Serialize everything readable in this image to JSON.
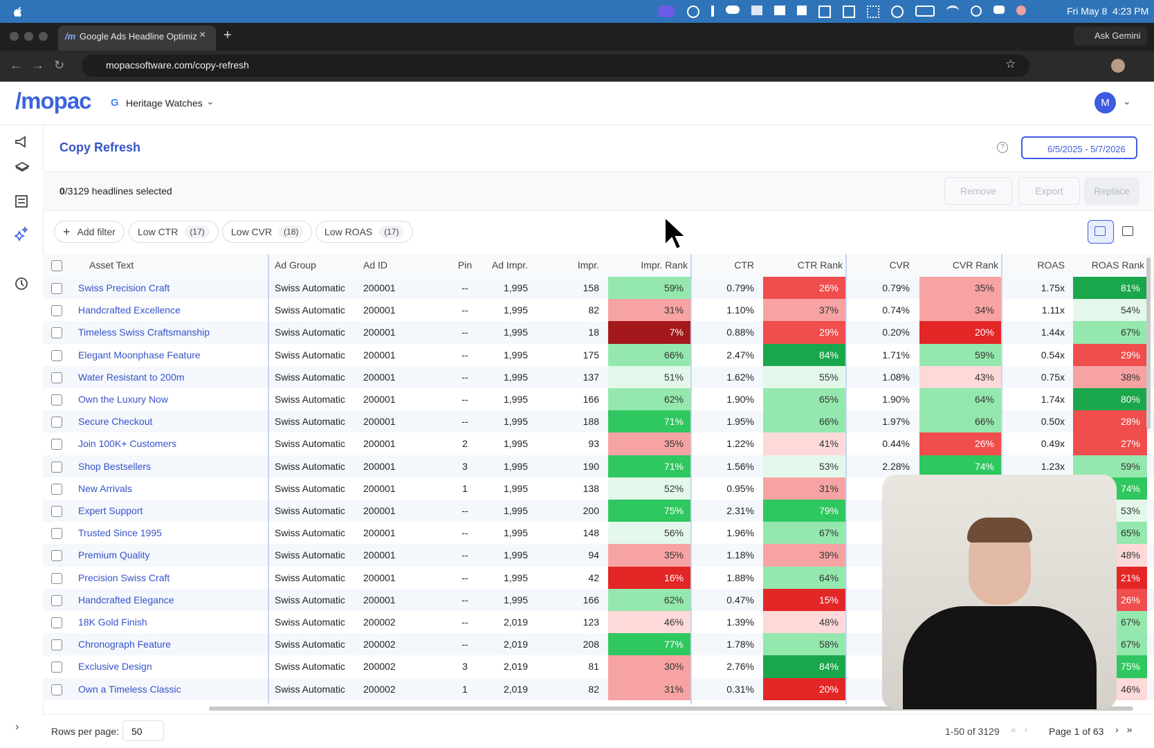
{
  "menubar": {
    "datetime": "Fri May 8  4:23 PM"
  },
  "browser": {
    "tab_title": "Google Ads Headline Optimiz",
    "ask": "Ask Gemini",
    "url": "mopacsoftware.com/copy-refresh"
  },
  "header": {
    "logo": "/mopac",
    "account": "Heritage Watches",
    "avatar": "M"
  },
  "page": {
    "title": "Copy Refresh",
    "date_range": "6/5/2025 - 5/7/2026",
    "selected_count": "0",
    "selected_text": "/3129 headlines selected",
    "buttons": [
      "Remove",
      "Export",
      "Replace"
    ]
  },
  "filters": [
    {
      "label": "Add filter"
    },
    {
      "label": "Low CTR",
      "count": "(17)"
    },
    {
      "label": "Low CVR",
      "count": "(18)"
    },
    {
      "label": "Low ROAS",
      "count": "(17)"
    }
  ],
  "table": {
    "headers": {
      "asset": "Asset Text",
      "group": "Ad Group",
      "id": "Ad ID",
      "pin": "Pin",
      "adimpr": "Ad Impr.",
      "impr": "Impr.",
      "imprRank": "Impr. Rank",
      "ctr": "CTR",
      "ctrRank": "CTR Rank",
      "cvr": "CVR",
      "cvrRank": "CVR Rank",
      "roas": "ROAS",
      "roasRank": "ROAS Rank"
    },
    "rows": [
      {
        "asset": "Swiss Precision Craft",
        "group": "Swiss Automatic",
        "id": "200001",
        "pin": "--",
        "adimpr": "1,995",
        "impr": "158",
        "imprRank": "59%",
        "ctr": "0.79%",
        "ctrRank": "26%",
        "cvr": "0.79%",
        "cvrRank": "35%",
        "roas": "1.75x",
        "roasRank": "81%"
      },
      {
        "asset": "Handcrafted Excellence",
        "group": "Swiss Automatic",
        "id": "200001",
        "pin": "--",
        "adimpr": "1,995",
        "impr": "82",
        "imprRank": "31%",
        "ctr": "1.10%",
        "ctrRank": "37%",
        "cvr": "0.74%",
        "cvrRank": "34%",
        "roas": "1.11x",
        "roasRank": "54%"
      },
      {
        "asset": "Timeless Swiss Craftsmanship",
        "group": "Swiss Automatic",
        "id": "200001",
        "pin": "--",
        "adimpr": "1,995",
        "impr": "18",
        "imprRank": "7%",
        "ctr": "0.88%",
        "ctrRank": "29%",
        "cvr": "0.20%",
        "cvrRank": "20%",
        "roas": "1.44x",
        "roasRank": "67%"
      },
      {
        "asset": "Elegant Moonphase Feature",
        "group": "Swiss Automatic",
        "id": "200001",
        "pin": "--",
        "adimpr": "1,995",
        "impr": "175",
        "imprRank": "66%",
        "ctr": "2.47%",
        "ctrRank": "84%",
        "cvr": "1.71%",
        "cvrRank": "59%",
        "roas": "0.54x",
        "roasRank": "29%"
      },
      {
        "asset": "Water Resistant to 200m",
        "group": "Swiss Automatic",
        "id": "200001",
        "pin": "--",
        "adimpr": "1,995",
        "impr": "137",
        "imprRank": "51%",
        "ctr": "1.62%",
        "ctrRank": "55%",
        "cvr": "1.08%",
        "cvrRank": "43%",
        "roas": "0.75x",
        "roasRank": "38%"
      },
      {
        "asset": "Own the Luxury Now",
        "group": "Swiss Automatic",
        "id": "200001",
        "pin": "--",
        "adimpr": "1,995",
        "impr": "166",
        "imprRank": "62%",
        "ctr": "1.90%",
        "ctrRank": "65%",
        "cvr": "1.90%",
        "cvrRank": "64%",
        "roas": "1.74x",
        "roasRank": "80%"
      },
      {
        "asset": "Secure Checkout",
        "group": "Swiss Automatic",
        "id": "200001",
        "pin": "--",
        "adimpr": "1,995",
        "impr": "188",
        "imprRank": "71%",
        "ctr": "1.95%",
        "ctrRank": "66%",
        "cvr": "1.97%",
        "cvrRank": "66%",
        "roas": "0.50x",
        "roasRank": "28%"
      },
      {
        "asset": "Join 100K+ Customers",
        "group": "Swiss Automatic",
        "id": "200001",
        "pin": "2",
        "adimpr": "1,995",
        "impr": "93",
        "imprRank": "35%",
        "ctr": "1.22%",
        "ctrRank": "41%",
        "cvr": "0.44%",
        "cvrRank": "26%",
        "roas": "0.49x",
        "roasRank": "27%"
      },
      {
        "asset": "Shop Bestsellers",
        "group": "Swiss Automatic",
        "id": "200001",
        "pin": "3",
        "adimpr": "1,995",
        "impr": "190",
        "imprRank": "71%",
        "ctr": "1.56%",
        "ctrRank": "53%",
        "cvr": "2.28%",
        "cvrRank": "74%",
        "roas": "1.23x",
        "roasRank": "59%"
      },
      {
        "asset": "New Arrivals",
        "group": "Swiss Automatic",
        "id": "200001",
        "pin": "1",
        "adimpr": "1,995",
        "impr": "138",
        "imprRank": "52%",
        "ctr": "0.95%",
        "ctrRank": "31%",
        "roasRank": "74%"
      },
      {
        "asset": "Expert Support",
        "group": "Swiss Automatic",
        "id": "200001",
        "pin": "--",
        "adimpr": "1,995",
        "impr": "200",
        "imprRank": "75%",
        "ctr": "2.31%",
        "ctrRank": "79%",
        "roasRank": "53%"
      },
      {
        "asset": "Trusted Since 1995",
        "group": "Swiss Automatic",
        "id": "200001",
        "pin": "--",
        "adimpr": "1,995",
        "impr": "148",
        "imprRank": "56%",
        "ctr": "1.96%",
        "ctrRank": "67%",
        "roasRank": "65%"
      },
      {
        "asset": "Premium Quality",
        "group": "Swiss Automatic",
        "id": "200001",
        "pin": "--",
        "adimpr": "1,995",
        "impr": "94",
        "imprRank": "35%",
        "ctr": "1.18%",
        "ctrRank": "39%",
        "roasRank": "48%"
      },
      {
        "asset": "Precision Swiss Craft",
        "group": "Swiss Automatic",
        "id": "200001",
        "pin": "--",
        "adimpr": "1,995",
        "impr": "42",
        "imprRank": "16%",
        "ctr": "1.88%",
        "ctrRank": "64%",
        "roasRank": "21%"
      },
      {
        "asset": "Handcrafted Elegance",
        "group": "Swiss Automatic",
        "id": "200001",
        "pin": "--",
        "adimpr": "1,995",
        "impr": "166",
        "imprRank": "62%",
        "ctr": "0.47%",
        "ctrRank": "15%",
        "roasRank": "26%"
      },
      {
        "asset": "18K Gold Finish",
        "group": "Swiss Automatic",
        "id": "200002",
        "pin": "--",
        "adimpr": "2,019",
        "impr": "123",
        "imprRank": "46%",
        "ctr": "1.39%",
        "ctrRank": "48%",
        "roasRank": "67%"
      },
      {
        "asset": "Chronograph Feature",
        "group": "Swiss Automatic",
        "id": "200002",
        "pin": "--",
        "adimpr": "2,019",
        "impr": "208",
        "imprRank": "77%",
        "ctr": "1.78%",
        "ctrRank": "58%",
        "roasRank": "67%"
      },
      {
        "asset": "Exclusive Design",
        "group": "Swiss Automatic",
        "id": "200002",
        "pin": "3",
        "adimpr": "2,019",
        "impr": "81",
        "imprRank": "30%",
        "ctr": "2.76%",
        "ctrRank": "84%",
        "roasRank": "75%"
      },
      {
        "asset": "Own a Timeless Classic",
        "group": "Swiss Automatic",
        "id": "200002",
        "pin": "1",
        "adimpr": "2,019",
        "impr": "82",
        "imprRank": "31%",
        "ctr": "0.31%",
        "ctrRank": "20%",
        "roasRank": "46%"
      }
    ]
  },
  "footer": {
    "rows_per_page": "Rows per page:",
    "page_size": "50",
    "range": "1-50 of 3129",
    "page": "Page 1 of 63"
  }
}
